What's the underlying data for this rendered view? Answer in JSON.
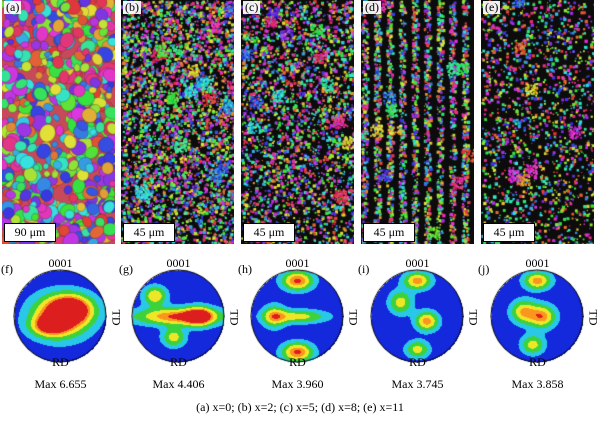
{
  "ebsd_maps": [
    {
      "id": "a",
      "label": "(a)",
      "scale": "90 μm"
    },
    {
      "id": "b",
      "label": "(b)",
      "scale": "45 μm"
    },
    {
      "id": "c",
      "label": "(c)",
      "scale": "45 μm"
    },
    {
      "id": "d",
      "label": "(d)",
      "scale": "45 μm"
    },
    {
      "id": "e",
      "label": "(e)",
      "scale": "45 μm"
    }
  ],
  "pole_figures": [
    {
      "id": "f",
      "label": "(f)",
      "top": "0001",
      "bottom": "RD",
      "side": "TD",
      "max": "Max 6.655"
    },
    {
      "id": "g",
      "label": "(g)",
      "top": "0001",
      "bottom": "RD",
      "side": "TD",
      "max": "Max 4.406"
    },
    {
      "id": "h",
      "label": "(h)",
      "top": "0001",
      "bottom": "RD",
      "side": "TD",
      "max": "Max 3.960"
    },
    {
      "id": "i",
      "label": "(i)",
      "top": "0001",
      "bottom": "RD",
      "side": "TD",
      "max": "Max 3.745"
    },
    {
      "id": "j",
      "label": "(j)",
      "top": "0001",
      "bottom": "RD",
      "side": "TD",
      "max": "Max 3.858"
    }
  ],
  "caption": "(a) x=0; (b) x=2; (c) x=5; (d) x=8; (e) x=11"
}
